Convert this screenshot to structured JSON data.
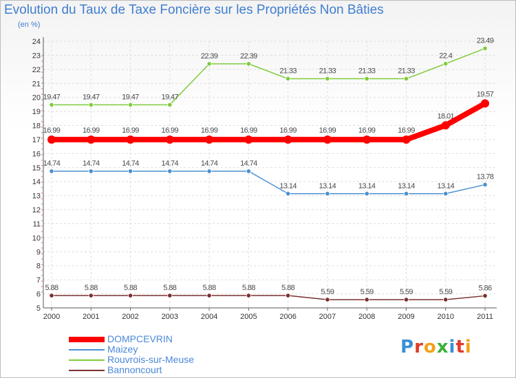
{
  "chart_data": {
    "type": "line",
    "title": "Evolution du Taux de Taxe Foncière sur les Propriétés Non Bâties",
    "ylabel": "(en %)",
    "xlabel": "",
    "x": [
      "2000",
      "2001",
      "2002",
      "2003",
      "2004",
      "2005",
      "2006",
      "2007",
      "2008",
      "2009",
      "2010",
      "2011"
    ],
    "ylim": [
      5,
      24
    ],
    "yticks": [
      5,
      6,
      7,
      8,
      9,
      10,
      11,
      12,
      13,
      14,
      15,
      16,
      17,
      18,
      19,
      20,
      21,
      22,
      23,
      24
    ],
    "grid": true,
    "legend_position": "bottom-left",
    "series": [
      {
        "name": "Rouvrois-sur-Meuse",
        "color": "#7ecb3a",
        "weight": "normal",
        "values": [
          19.47,
          19.47,
          19.47,
          19.47,
          22.39,
          22.39,
          21.33,
          21.33,
          21.33,
          21.33,
          22.4,
          23.49
        ],
        "labels": [
          "19.47",
          "19.47",
          "19.47",
          "19.47",
          "22.39",
          "22.39",
          "21.33",
          "21.33",
          "21.33",
          "21.33",
          "22.4",
          "23.49"
        ]
      },
      {
        "name": "DOMPCEVRIN",
        "color": "#ff0000",
        "weight": "bold",
        "values": [
          16.99,
          16.99,
          16.99,
          16.99,
          16.99,
          16.99,
          16.99,
          16.99,
          16.99,
          16.99,
          18.01,
          19.57
        ],
        "labels": [
          "16.99",
          "16.99",
          "16.99",
          "16.99",
          "16.99",
          "16.99",
          "16.99",
          "16.99",
          "16.99",
          "16.99",
          "18.01",
          "19.57"
        ]
      },
      {
        "name": "Maizey",
        "color": "#4a8fd0",
        "weight": "normal",
        "values": [
          14.74,
          14.74,
          14.74,
          14.74,
          14.74,
          14.74,
          13.14,
          13.14,
          13.14,
          13.14,
          13.14,
          13.78
        ],
        "labels": [
          "14.74",
          "14.74",
          "14.74",
          "14.74",
          "14.74",
          "14.74",
          "13.14",
          "13.14",
          "13.14",
          "13.14",
          "13.14",
          "13.78"
        ]
      },
      {
        "name": "Bannoncourt",
        "color": "#7a2e2e",
        "weight": "normal",
        "values": [
          5.88,
          5.88,
          5.88,
          5.88,
          5.88,
          5.88,
          5.88,
          5.59,
          5.59,
          5.59,
          5.59,
          5.86
        ],
        "labels": [
          "5.88",
          "5.88",
          "5.88",
          "5.88",
          "5.88",
          "5.88",
          "5.88",
          "5.59",
          "5.59",
          "5.59",
          "5.59",
          "5.86"
        ]
      }
    ],
    "legend": [
      {
        "name": "DOMPCEVRIN",
        "color": "#ff0000",
        "weight": "bold"
      },
      {
        "name": "Maizey",
        "color": "#4a8fd0",
        "weight": "normal"
      },
      {
        "name": "Rouvrois-sur-Meuse",
        "color": "#7ecb3a",
        "weight": "normal"
      },
      {
        "name": "Bannoncourt",
        "color": "#7a2e2e",
        "weight": "normal"
      }
    ]
  },
  "logo": {
    "text": "Proxiti",
    "letter_colors": [
      "#3a8fd8",
      "#e23a2a",
      "#f2a21a",
      "#3ab03a",
      "#3a8fd8",
      "#e23a2a",
      "#f2a21a"
    ]
  }
}
